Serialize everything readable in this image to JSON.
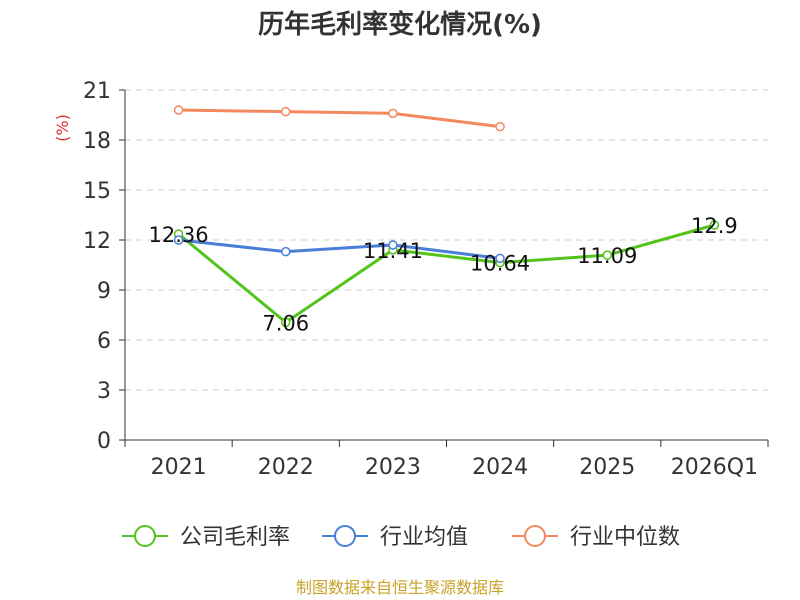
{
  "chart_data": {
    "type": "line",
    "title": "历年毛利率变化情况(%)",
    "ylabel": "(%)",
    "xlabel": "",
    "ylim": [
      0,
      21
    ],
    "yticks": [
      0,
      3,
      6,
      9,
      12,
      15,
      18,
      21
    ],
    "categories": [
      "2021",
      "2022",
      "2023",
      "2024",
      "2025",
      "2026Q1"
    ],
    "series": [
      {
        "name": "公司毛利率",
        "color": "#52c41a",
        "values": [
          12.36,
          7.06,
          11.41,
          10.64,
          11.09,
          12.9
        ],
        "labels": [
          "12.36",
          "7.06",
          "11.41",
          "10.64",
          "11.09",
          "12.9"
        ]
      },
      {
        "name": "行业均值",
        "color": "#4a7fd8",
        "values": [
          12.0,
          11.3,
          11.7,
          10.9,
          null,
          null
        ]
      },
      {
        "name": "行业中位数",
        "color": "#f4895f",
        "values": [
          19.8,
          19.7,
          19.6,
          18.8,
          null,
          null
        ]
      }
    ],
    "grid": true,
    "legend": "bottom"
  },
  "source": "制图数据来自恒生聚源数据库"
}
